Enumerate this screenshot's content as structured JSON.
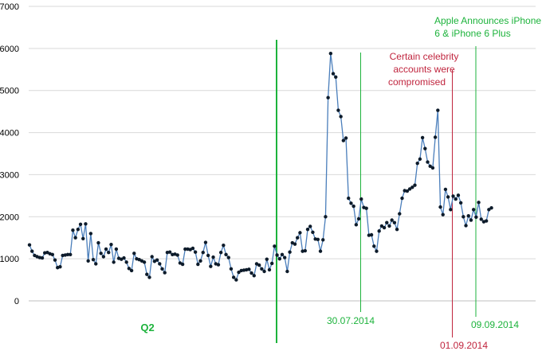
{
  "chart_data": {
    "type": "line",
    "ylim": [
      0,
      7000
    ],
    "y_ticks": [
      "0",
      "1000",
      "2000",
      "3000",
      "4000",
      "5000",
      "6000",
      "7000"
    ],
    "grid": "horizontal",
    "colors": {
      "line": "#4a7ebb",
      "marker": "#0d1b2a",
      "green": "#1db33c",
      "red": "#c0253e",
      "grid": "#d9d9d9"
    },
    "series": [
      {
        "values": [
          1330,
          1180,
          1080,
          1050,
          1030,
          1020,
          1140,
          1150,
          1120,
          1100,
          970,
          790,
          810,
          1080,
          1090,
          1100,
          1100,
          1680,
          1500,
          1700,
          1820,
          1480,
          1830,
          950,
          1600,
          980,
          880,
          1380,
          1130,
          1050,
          1230,
          1150,
          1340,
          920,
          1230,
          1010,
          990,
          1020,
          920,
          770,
          720,
          1130,
          1000,
          980,
          950,
          920,
          630,
          560,
          1050,
          940,
          970,
          880,
          760,
          670,
          1150,
          1160,
          1100,
          1110,
          1090,
          900,
          870,
          1230,
          1230,
          1220,
          1250,
          1160,
          870,
          950,
          1150,
          1390,
          1080,
          820,
          1040,
          880,
          860,
          1150,
          1320,
          1100,
          1030,
          760,
          560,
          500,
          680,
          720,
          730,
          740,
          750,
          660,
          600,
          880,
          850,
          760,
          700,
          990,
          740,
          890,
          1300,
          1090,
          1000,
          1100,
          1030,
          700,
          1160,
          1380,
          1350,
          1500,
          1620,
          1180,
          1190,
          1700,
          1770,
          1630,
          1470,
          1460,
          1180,
          1450,
          2000,
          4830,
          5880,
          5400,
          5320,
          4530,
          4380,
          3810,
          3870,
          2440,
          2320,
          2250,
          1810,
          1950,
          2420,
          2220,
          2200,
          1560,
          1570,
          1300,
          1180,
          1660,
          1780,
          1740,
          1860,
          1780,
          1920,
          1860,
          1700,
          2070,
          2440,
          2620,
          2610,
          2660,
          2700,
          2750,
          3270,
          3370,
          3880,
          3620,
          3300,
          3200,
          3160,
          3890,
          4530,
          2230,
          2050,
          2650,
          2470,
          2170,
          2490,
          2420,
          2510,
          2330,
          2000,
          1790,
          2020,
          1920,
          2170,
          1990,
          2340,
          1940,
          1880,
          1900,
          2170,
          2210
        ]
      }
    ],
    "markers": [
      {
        "id": "q2-end",
        "index": 88
      },
      {
        "id": "date-300714",
        "index": 118
      },
      {
        "id": "date-010914",
        "index": 151
      },
      {
        "id": "date-090914",
        "index": 159
      }
    ],
    "annotations": {
      "q2_label": "Q2",
      "date_300714": "30.07.2014",
      "date_010914": "01.09.2014",
      "date_090914": "09.09.2014",
      "celebrity_line1": "Certain celebrity",
      "celebrity_line2": "accounts were",
      "celebrity_line3": "compromised",
      "apple_line1": "Apple Announces iPhone",
      "apple_line2": "6 & iPhone 6 Plus"
    }
  }
}
